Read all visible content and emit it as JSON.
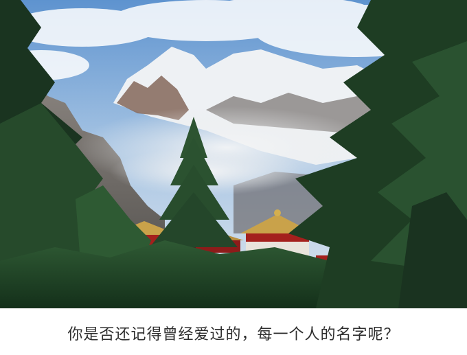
{
  "caption": "你是否还记得曾经爱过的，每一个人的名字呢？",
  "colors": {
    "sky": "#8fb7dc",
    "snow": "#f2f4f6",
    "rock": "#7a6f6a",
    "forest": "#1f3d24",
    "temple_red": "#a4201d",
    "caption_text": "#2e2e2e"
  }
}
